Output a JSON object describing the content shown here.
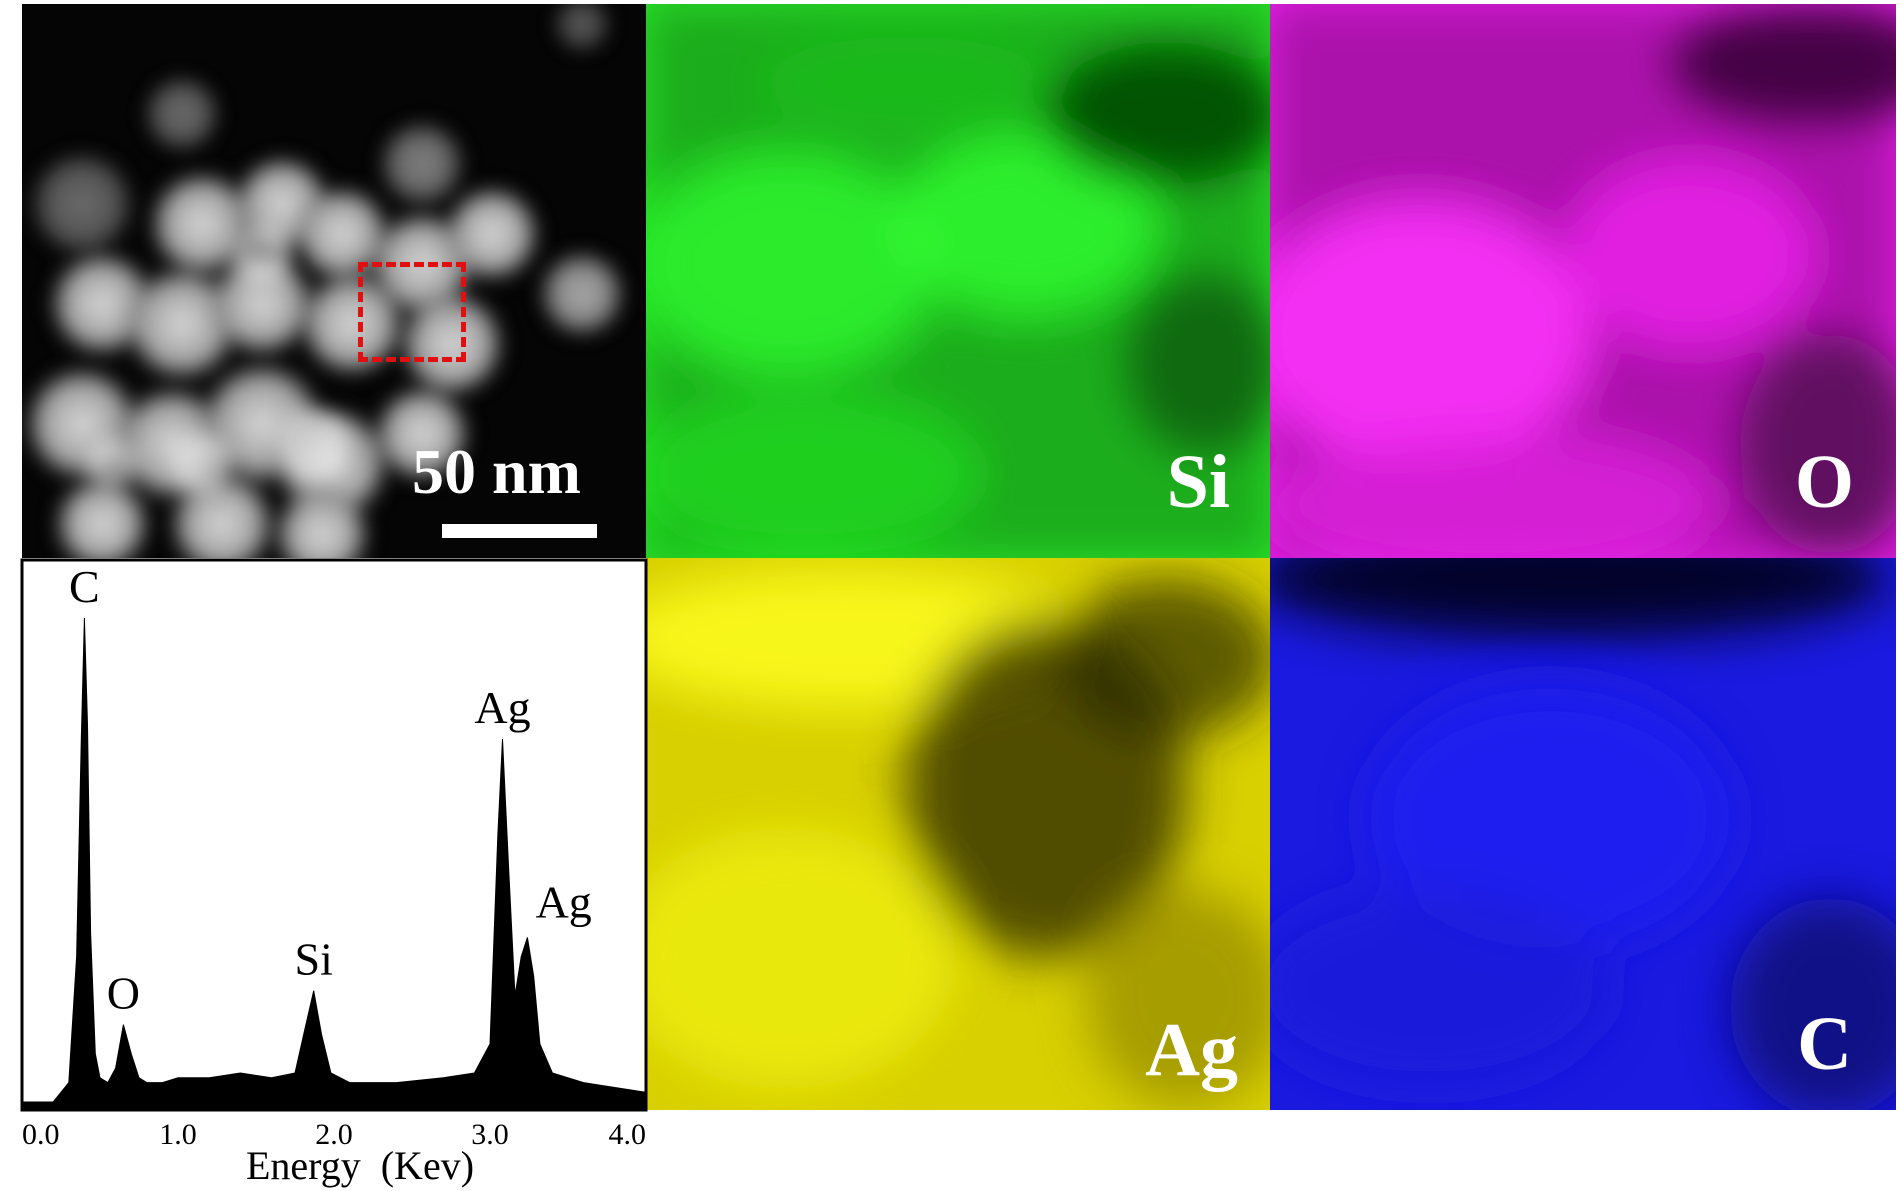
{
  "figure": {
    "sem": {
      "scale_label": "50 nm"
    },
    "maps": [
      {
        "element": "Si",
        "color": "#22e022"
      },
      {
        "element": "O",
        "color": "#e020e0"
      },
      {
        "element": "Ag",
        "color": "#d8d000"
      },
      {
        "element": "C",
        "color": "#1a1ae0"
      }
    ]
  },
  "chart_data": {
    "type": "line",
    "title": "",
    "xlabel": "Energy  (Kev)",
    "ylabel": "",
    "xlim": [
      0.0,
      4.0
    ],
    "x_ticks": [
      "0.0",
      "1.0",
      "2.0",
      "3.0",
      "4.0"
    ],
    "series": [
      {
        "x": [
          0.0,
          0.2,
          0.3,
          0.35,
          0.38,
          0.4,
          0.42,
          0.44,
          0.47,
          0.5,
          0.55,
          0.6,
          0.65,
          0.7,
          0.75,
          0.8,
          0.9,
          1.0,
          1.2,
          1.4,
          1.6,
          1.75,
          1.82,
          1.87,
          1.92,
          1.98,
          2.1,
          2.4,
          2.7,
          2.9,
          3.0,
          3.05,
          3.08,
          3.12,
          3.16,
          3.2,
          3.24,
          3.28,
          3.32,
          3.4,
          3.6,
          3.8,
          4.0
        ],
        "y": [
          0,
          0,
          4,
          30,
          75,
          100,
          78,
          35,
          10,
          5,
          4,
          7,
          16,
          10,
          5,
          4,
          4,
          5,
          5,
          6,
          5,
          6,
          16,
          23,
          14,
          6,
          4,
          4,
          5,
          6,
          12,
          55,
          75,
          48,
          22,
          30,
          34,
          26,
          12,
          6,
          4,
          3,
          2
        ]
      }
    ],
    "peak_labels": [
      {
        "text": "C",
        "x": 0.4,
        "y": 100
      },
      {
        "text": "O",
        "x": 0.65,
        "y": 16
      },
      {
        "text": "Si",
        "x": 1.87,
        "y": 23
      },
      {
        "text": "Ag",
        "x": 3.08,
        "y": 75
      },
      {
        "text": "Ag",
        "x": 3.28,
        "y": 34
      }
    ]
  }
}
